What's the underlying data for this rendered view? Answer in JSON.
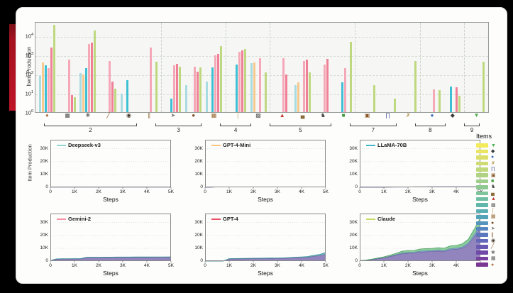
{
  "page": {
    "background": "#000000",
    "card_bg": "#fdfdfc",
    "accent_red": "#bf1527"
  },
  "chart_data": [
    {
      "type": "bar",
      "ylabel": "Item Production",
      "yscale": "log",
      "ytick_exponents": [
        0,
        1,
        2,
        3,
        4
      ],
      "ylim_log10": [
        0,
        4.74
      ],
      "series": [
        {
          "name": "Deepseek-v3",
          "color": "#a8dbe2"
        },
        {
          "name": "GPT-4-Mini",
          "color": "#f7c98c"
        },
        {
          "name": "LLaMA-70B",
          "color": "#3ec0d4"
        },
        {
          "name": "Gemini-2",
          "color": "#f5a8b8"
        },
        {
          "name": "GPT-4",
          "color": "#ef8095"
        },
        {
          "name": "Claude",
          "color": "#bed880"
        }
      ],
      "groups": [
        {
          "label": "2",
          "items": [
            {
              "icon": "cookie-icon",
              "glyph": "●",
              "icon_color": "#b5764a",
              "values": [
                80,
                400,
                280,
                190,
                2400,
                35000
              ]
            },
            {
              "icon": "furnace-icon",
              "glyph": "▦",
              "icon_color": "#5a5a5a",
              "values": [
                0,
                0,
                0,
                550,
                8,
                6
              ]
            },
            {
              "icon": "compass-icon",
              "glyph": "✱",
              "icon_color": "#7a7a7a",
              "values": [
                110,
                95,
                190,
                3700,
                4300,
                18000
              ]
            },
            {
              "icon": "stick-icon",
              "glyph": "╱",
              "icon_color": "#8a5a2b",
              "values": [
                0,
                0,
                0,
                450,
                40,
                16
              ]
            },
            {
              "icon": "jukebox-icon",
              "glyph": "◉",
              "icon_color": "#4a3b2f",
              "values": [
                9,
                0,
                48,
                0,
                0,
                0
              ]
            },
            {
              "icon": "rails-icon",
              "glyph": "∥",
              "icon_color": "#8a5a2b",
              "values": [
                0,
                0,
                0,
                2400,
                0,
                430
              ]
            }
          ]
        },
        {
          "label": "3",
          "items": [
            {
              "icon": "arrow-icon",
              "glyph": "➤",
              "icon_color": "#777777",
              "values": [
                0,
                0,
                5,
                280,
                320,
                240
              ]
            },
            {
              "icon": "cocoa-icon",
              "glyph": "●",
              "icon_color": "#7a4b26",
              "values": [
                25,
                0,
                0,
                240,
                130,
                220
              ]
            },
            {
              "icon": "crafting-table-icon",
              "glyph": "▦",
              "icon_color": "#9a6b35",
              "values": [
                40,
                0,
                220,
                900,
                1100,
                2700
              ]
            }
          ]
        },
        {
          "label": "4",
          "items": [
            {
              "icon": "torch-icon",
              "glyph": "⌠",
              "icon_color": "#b08950",
              "values": [
                0,
                0,
                300,
                1400,
                1600,
                2000
              ]
            },
            {
              "icon": "iron-bars-icon",
              "glyph": "▩",
              "icon_color": "#666666",
              "values": [
                350,
                380,
                0,
                650,
                0,
                120
              ]
            }
          ]
        },
        {
          "label": "5",
          "items": [
            {
              "icon": "red-flask-icon",
              "glyph": "▲",
              "icon_color": "#c0392b",
              "values": [
                0,
                0,
                0,
                650,
                90,
                0
              ]
            },
            {
              "icon": "bed-icon",
              "glyph": "▄",
              "icon_color": "#8a6d3b",
              "values": [
                25,
                35,
                0,
                450,
                550,
                120
              ]
            },
            {
              "icon": "armor-stand-icon",
              "glyph": "♞",
              "icon_color": "#4a4a4a",
              "values": [
                0,
                0,
                0,
                300,
                600,
                0
              ]
            },
            {
              "icon": "emerald-block-icon",
              "glyph": "■",
              "icon_color": "#3f9b3f",
              "values": [
                0,
                0,
                35,
                200,
                0,
                4800
              ]
            }
          ]
        },
        {
          "label": "7",
          "items": [
            {
              "icon": "chest-icon",
              "glyph": "▣",
              "icon_color": "#8a5a2b",
              "values": [
                0,
                0,
                0,
                0,
                0,
                25
              ]
            },
            {
              "icon": "leggings-icon",
              "glyph": "∏",
              "icon_color": "#3b4a8a",
              "values": [
                0,
                0,
                0,
                0,
                0,
                5
              ]
            },
            {
              "icon": "crossbow-icon",
              "glyph": "✗",
              "icon_color": "#b08a3e",
              "values": [
                0,
                0,
                0,
                0,
                0,
                470
              ]
            }
          ]
        },
        {
          "label": "8",
          "items": [
            {
              "icon": "ender-pearl-icon",
              "glyph": "●",
              "icon_color": "#3b6fc4",
              "values": [
                0,
                0,
                0,
                15,
                0,
                14
              ]
            },
            {
              "icon": "dragon-head-icon",
              "glyph": "◆",
              "icon_color": "#3a3a3a",
              "values": [
                0,
                0,
                22,
                0,
                20,
                7
              ]
            }
          ]
        },
        {
          "label": "9",
          "items": [
            {
              "icon": "potion-icon",
              "glyph": "▼",
              "icon_color": "#4cae4c",
              "values": [
                0,
                0,
                0,
                0,
                0,
                440
              ]
            }
          ]
        }
      ]
    },
    {
      "type": "area",
      "ylabel": "Item Production",
      "xlabel": "Steps",
      "xticks": [
        "0",
        "1K",
        "2K",
        "3K",
        "4K",
        "5K"
      ],
      "yticks": [
        "0",
        "10K",
        "20K",
        "30K"
      ],
      "xlim": [
        0,
        5000
      ],
      "ylim": [
        0,
        37000
      ],
      "x_values": [
        0,
        250,
        500,
        750,
        1000,
        1250,
        1500,
        1750,
        2000,
        2250,
        2500,
        2750,
        3000,
        3250,
        3500,
        3750,
        4000,
        4250,
        4500,
        4750,
        5000
      ],
      "layer_colors": {
        "purple": "#8374b5",
        "blue": "#7e9ccb",
        "teal": "#63b8bc",
        "green": "#7cc690"
      },
      "layer_edges": {
        "purple": "#5f5191",
        "blue": "#53749f",
        "teal": "#3c9097",
        "green": "#4f9e63"
      },
      "panels": [
        {
          "model": "Deepseek-v3",
          "line_color": "#8fd6d6",
          "layers": {
            "purple": [
              120,
              120,
              120,
              120,
              120,
              120,
              120,
              120,
              120,
              120,
              120,
              120,
              120,
              120,
              120,
              120,
              120,
              120,
              120,
              120,
              120
            ]
          }
        },
        {
          "model": "GPT-4-Mini",
          "line_color": "#f9c480",
          "layers": {
            "purple": [
              0,
              0,
              280,
              290,
              300,
              300,
              300,
              310,
              310,
              310,
              320,
              320,
              320,
              320,
              330,
              330,
              330,
              340,
              340,
              340,
              350
            ]
          }
        },
        {
          "model": "LLaMA-70B",
          "line_color": "#3fb8cd",
          "layers": {
            "purple": [
              0,
              0,
              0,
              0,
              0,
              120,
              140,
              150,
              160,
              380,
              400,
              410,
              420,
              430,
              440,
              450,
              450,
              460,
              470,
              480,
              500
            ]
          }
        },
        {
          "model": "Gemini-2",
          "line_color": "#f591a3",
          "layers": {
            "purple": [
              400,
              1500,
              1600,
              1650,
              1700,
              1700,
              2600,
              2700,
              2700,
              2750,
              2750,
              2800,
              2800,
              2800,
              2850,
              2850,
              2850,
              2900,
              2900,
              2900,
              2950
            ],
            "teal": [
              50,
              200,
              220,
              230,
              240,
              240,
              330,
              340,
              340,
              340,
              340,
              350,
              350,
              350,
              350,
              350,
              350,
              360,
              360,
              360,
              370
            ]
          }
        },
        {
          "model": "GPT-4",
          "line_color": "#ea4f63",
          "layers": {
            "purple": [
              0,
              0,
              0,
              0,
              1700,
              1750,
              1800,
              1850,
              1900,
              1950,
              2000,
              2050,
              2100,
              2200,
              2400,
              2600,
              2800,
              3000,
              3800,
              4300,
              5400
            ],
            "teal": [
              0,
              0,
              0,
              0,
              250,
              260,
              270,
              280,
              290,
              300,
              310,
              320,
              330,
              350,
              380,
              420,
              460,
              500,
              700,
              900,
              1300
            ]
          }
        },
        {
          "model": "Claude",
          "line_color": "#c9da62",
          "layers": {
            "purple": [
              250,
              600,
              1100,
              1800,
              2500,
              3500,
              4600,
              5700,
              6200,
              6300,
              7100,
              7300,
              7500,
              7900,
              7400,
              8900,
              9200,
              10100,
              12900,
              19000,
              25500
            ],
            "blue": [
              20,
              60,
              110,
              180,
              250,
              350,
              450,
              560,
              620,
              630,
              710,
              730,
              750,
              790,
              740,
              890,
              920,
              1010,
              1290,
              1900,
              2550
            ],
            "green": [
              60,
              140,
              290,
              420,
              550,
              750,
              950,
              1340,
              1380,
              1370,
              1590,
              1670,
              1650,
              1710,
              1860,
              2010,
              2080,
              2290,
              2810,
              4100,
              5450
            ]
          }
        }
      ]
    }
  ],
  "items_legend": {
    "title": "Items",
    "entries": [
      {
        "icon": "potion-icon",
        "glyph": "▼",
        "icon_color": "#4cae4c",
        "swatch": "#f3ea5c"
      },
      {
        "icon": "dragon-head-icon",
        "glyph": "◆",
        "icon_color": "#3a3a3a",
        "swatch": "#e9e562"
      },
      {
        "icon": "ender-pearl-icon",
        "glyph": "●",
        "icon_color": "#3b6fc4",
        "swatch": "#dce06a"
      },
      {
        "icon": "crossbow-icon",
        "glyph": "✗",
        "icon_color": "#b08a3e",
        "swatch": "#cedc72"
      },
      {
        "icon": "leggings-icon",
        "glyph": "∏",
        "icon_color": "#3b4a8a",
        "swatch": "#bfd87a"
      },
      {
        "icon": "chest-icon",
        "glyph": "▣",
        "icon_color": "#8a5a2b",
        "swatch": "#afd382"
      },
      {
        "icon": "emerald-block-icon",
        "glyph": "■",
        "icon_color": "#3f9b3f",
        "swatch": "#9fce8a"
      },
      {
        "icon": "armor-stand-icon",
        "glyph": "♞",
        "icon_color": "#4a4a4a",
        "swatch": "#8fc992"
      },
      {
        "icon": "bed-icon",
        "glyph": "▄",
        "icon_color": "#8a6d3b",
        "swatch": "#7fc49a"
      },
      {
        "icon": "red-flask-icon",
        "glyph": "▲",
        "icon_color": "#c0392b",
        "swatch": "#70bea3"
      },
      {
        "icon": "iron-bars-icon",
        "glyph": "▩",
        "icon_color": "#666666",
        "swatch": "#62b7ab"
      },
      {
        "icon": "torch-icon",
        "glyph": "⌠",
        "icon_color": "#b08950",
        "swatch": "#58aeb2"
      },
      {
        "icon": "crafting-table-icon",
        "glyph": "▦",
        "icon_color": "#9a6b35",
        "swatch": "#53a2b8"
      },
      {
        "icon": "cocoa-icon",
        "glyph": "●",
        "icon_color": "#7a4b26",
        "swatch": "#5494bd"
      },
      {
        "icon": "arrow-icon",
        "glyph": "➤",
        "icon_color": "#777777",
        "swatch": "#5886c0"
      },
      {
        "icon": "rails-icon",
        "glyph": "∥",
        "icon_color": "#8a5a2b",
        "swatch": "#5d77bf"
      },
      {
        "icon": "jukebox-icon",
        "glyph": "◉",
        "icon_color": "#4a3b2f",
        "swatch": "#6368ba"
      },
      {
        "icon": "stick-icon",
        "glyph": "╱",
        "icon_color": "#8a5a2b",
        "swatch": "#6a59b2"
      },
      {
        "icon": "compass-icon",
        "glyph": "✱",
        "icon_color": "#7a7a7a",
        "swatch": "#714aa8"
      },
      {
        "icon": "furnace-icon",
        "glyph": "▦",
        "icon_color": "#5a5a5a",
        "swatch": "#773f9e"
      },
      {
        "icon": "cookie-icon",
        "glyph": "●",
        "icon_color": "#b5764a",
        "swatch": "#7b3794"
      }
    ]
  }
}
